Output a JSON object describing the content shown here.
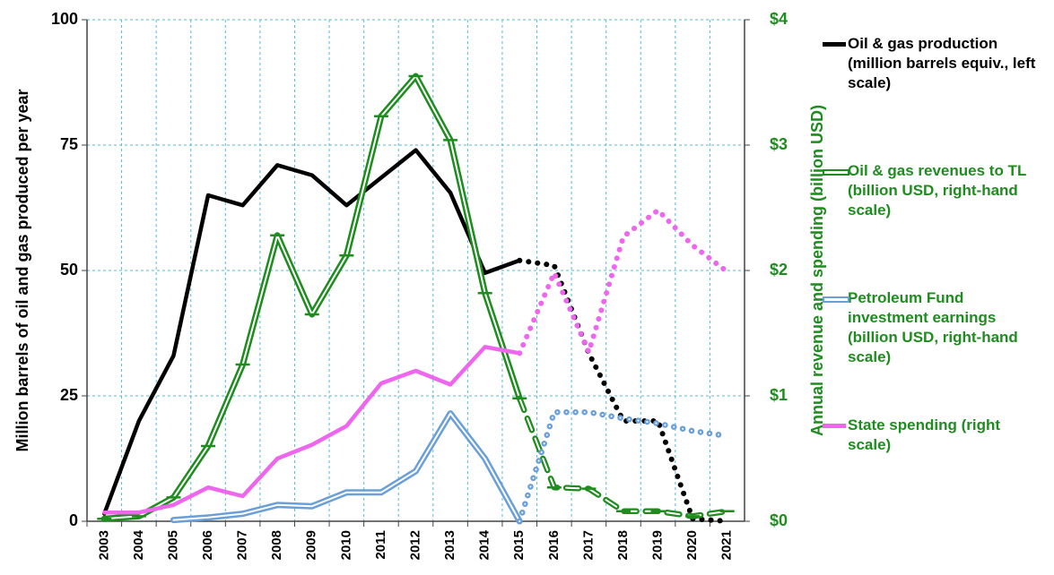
{
  "chart_data": {
    "type": "line",
    "categories": [
      "2003",
      "2004",
      "2005",
      "2006",
      "2007",
      "2008",
      "2009",
      "2010",
      "2011",
      "2012",
      "2013",
      "2014",
      "2015",
      "2016",
      "2017",
      "2018",
      "2019",
      "2020",
      "2021"
    ],
    "ylabel": "Million barrels of oil and gas produced per year",
    "y2label": "Annual revenue and spending (billion USD)",
    "ylim": [
      0,
      100
    ],
    "yticks": [
      0,
      25,
      50,
      75,
      100
    ],
    "y2lim": [
      0,
      4
    ],
    "y2ticks": [
      {
        "value": 0,
        "label": "$0"
      },
      {
        "value": 1,
        "label": "$1"
      },
      {
        "value": 2,
        "label": "$2"
      },
      {
        "value": 3,
        "label": "$3"
      },
      {
        "value": 4,
        "label": "$4"
      }
    ],
    "grid": true,
    "legend": "right",
    "series": [
      {
        "name": "Oil & gas production (million barrels equiv., left scale)",
        "color": "#000000",
        "axis": "y",
        "style": "single",
        "projected_from": "2015",
        "values": [
          1.5,
          20,
          33,
          65,
          63,
          71,
          69,
          63,
          68.5,
          74,
          65.5,
          49.5,
          52,
          51,
          33.5,
          20,
          20,
          0.5,
          0
        ]
      },
      {
        "name": "Oil & gas revenues to TL (billion USD, right-hand scale)",
        "color": "#1e8c1e",
        "axis": "y2",
        "style": "double",
        "marker": "dash",
        "projected_from": "2015",
        "values": [
          0.02,
          0.04,
          0.19,
          0.6,
          1.25,
          2.28,
          1.65,
          2.12,
          3.23,
          3.55,
          3.04,
          1.82,
          0.98,
          0.27,
          0.26,
          0.08,
          0.08,
          0.04,
          0.08
        ]
      },
      {
        "name": "Petroleum Fund investment earnings (billion USD, right-hand scale)",
        "color": "#6a9fd8",
        "axis": "y2",
        "style": "double",
        "projected_from": "2015",
        "values": [
          null,
          null,
          0.01,
          0.03,
          0.06,
          0.13,
          0.12,
          0.23,
          0.23,
          0.4,
          0.86,
          0.5,
          0.0,
          0.87,
          0.87,
          0.82,
          0.78,
          0.72,
          0.68
        ]
      },
      {
        "name": "State spending (right scale)",
        "color": "#ee66ee",
        "axis": "y2",
        "style": "single",
        "projected_from": "2015",
        "values": [
          0.07,
          0.07,
          0.13,
          0.27,
          0.2,
          0.5,
          0.61,
          0.76,
          1.1,
          1.2,
          1.09,
          1.39,
          1.34,
          1.98,
          1.35,
          2.27,
          2.48,
          2.2,
          1.99
        ]
      }
    ]
  }
}
